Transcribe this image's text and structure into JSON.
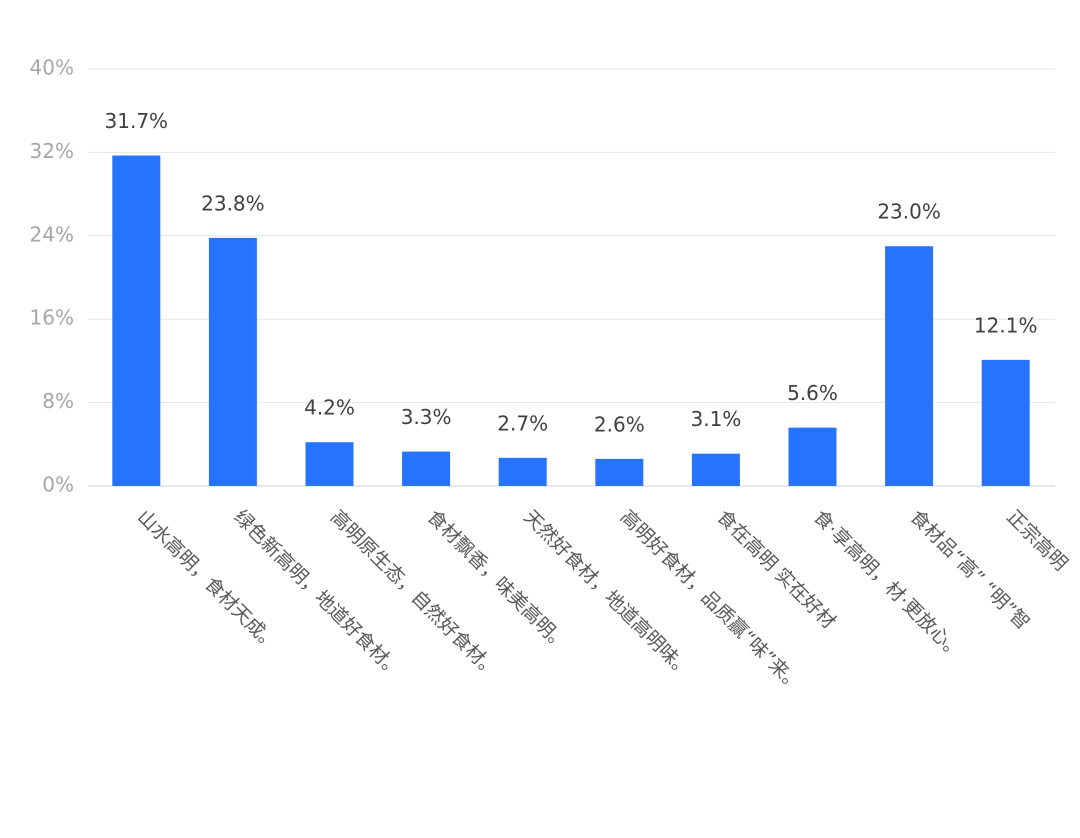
{
  "chart_data": {
    "type": "bar",
    "categories": [
      "山水高明，食材天成。",
      "绿色新高明，地道好食材。",
      "高明原生态，自然好食材。",
      "食材飘香，味美高明。",
      "天然好食材，地道高明味。",
      "高明好食材，品质赢“味”来。",
      "食在高明 实在好材",
      "食·享高明，材·更放心。",
      "食材品“高” “明”智",
      "正宗高明"
    ],
    "values": [
      31.7,
      23.8,
      4.2,
      3.3,
      2.7,
      2.6,
      3.1,
      5.6,
      23.0,
      12.1
    ],
    "value_labels": [
      "31.7%",
      "23.8%",
      "4.2%",
      "3.3%",
      "2.7%",
      "2.6%",
      "3.1%",
      "5.6%",
      "23.0%",
      "12.1%"
    ],
    "color": "#2673ff",
    "ylim": [
      0,
      40
    ],
    "yticks": [
      {
        "value": 0,
        "label": "0%"
      },
      {
        "value": 8,
        "label": "8%"
      },
      {
        "value": 16,
        "label": "16%"
      },
      {
        "value": 24,
        "label": "24%"
      },
      {
        "value": 32,
        "label": "32%"
      },
      {
        "value": 40,
        "label": "40%"
      }
    ],
    "grid": true
  }
}
